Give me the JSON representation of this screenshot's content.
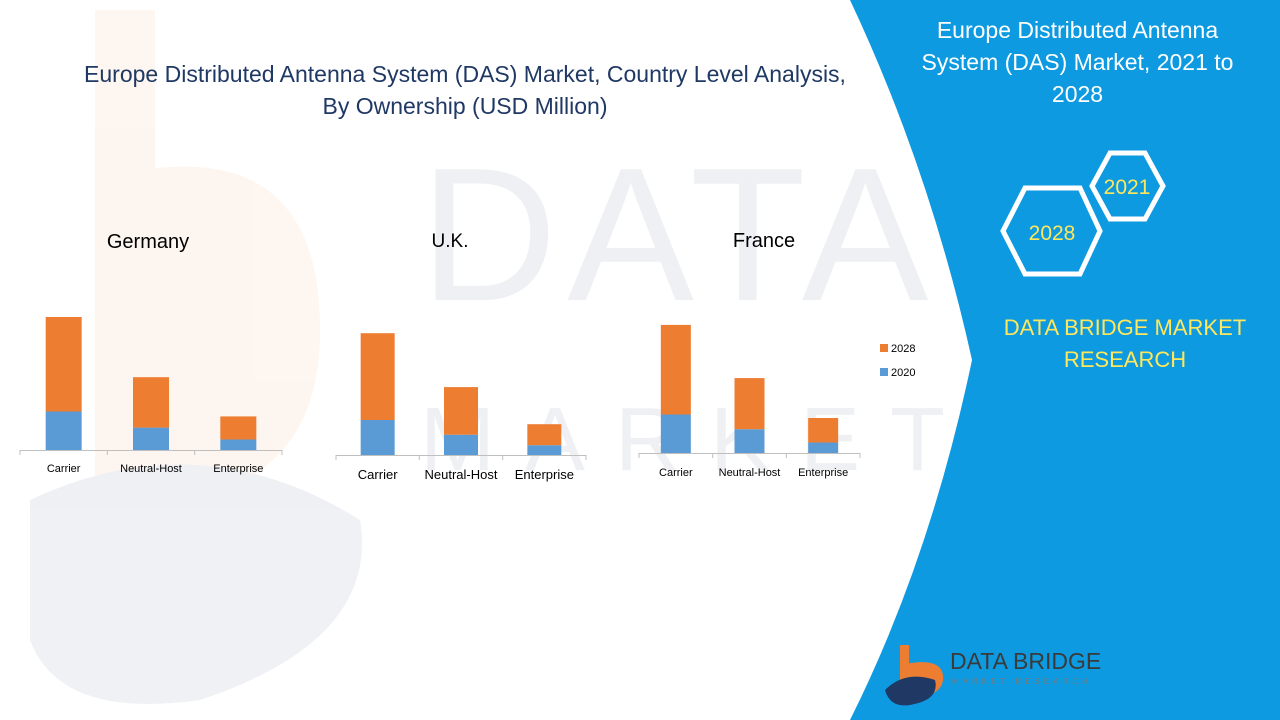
{
  "title": "Europe Distributed Antenna System (DAS) Market, Country Level Analysis, By Ownership (USD Million)",
  "side_panel": {
    "title": "Europe Distributed Antenna System (DAS) Market, 2021 to 2028",
    "hex_labels": [
      "2021",
      "2028"
    ],
    "brand": "DATA BRIDGE MARKET RESEARCH",
    "logo_name": "DATA BRIDGE",
    "logo_tagline": "MARKET RESEARCH"
  },
  "colors": {
    "series_2020": "#5b9bd5",
    "series_2028": "#ed7d31",
    "panel": "#0e9ae0",
    "brand_text": "#ffe75c",
    "title_text": "#1f3864"
  },
  "chart_data": [
    {
      "type": "bar",
      "stacked": true,
      "title": "Germany",
      "categories": [
        "Carrier",
        "Neutral-Host",
        "Enterprise"
      ],
      "series": [
        {
          "name": "2020",
          "values": [
            55,
            32,
            15
          ]
        },
        {
          "name": "2028",
          "values": [
            135,
            72,
            33
          ]
        }
      ]
    },
    {
      "type": "bar",
      "stacked": true,
      "title": "U.K.",
      "categories": [
        "Carrier",
        "Neutral-Host",
        "Enterprise"
      ],
      "series": [
        {
          "name": "2020",
          "values": [
            50,
            29,
            14
          ]
        },
        {
          "name": "2028",
          "values": [
            124,
            68,
            30
          ]
        }
      ]
    },
    {
      "type": "bar",
      "stacked": true,
      "title": "France",
      "categories": [
        "Carrier",
        "Neutral-Host",
        "Enterprise"
      ],
      "series": [
        {
          "name": "2020",
          "values": [
            55,
            34,
            15
          ]
        },
        {
          "name": "2028",
          "values": [
            128,
            73,
            35
          ]
        }
      ]
    }
  ],
  "legend": {
    "position": "right",
    "entries": [
      "2028",
      "2020"
    ]
  }
}
